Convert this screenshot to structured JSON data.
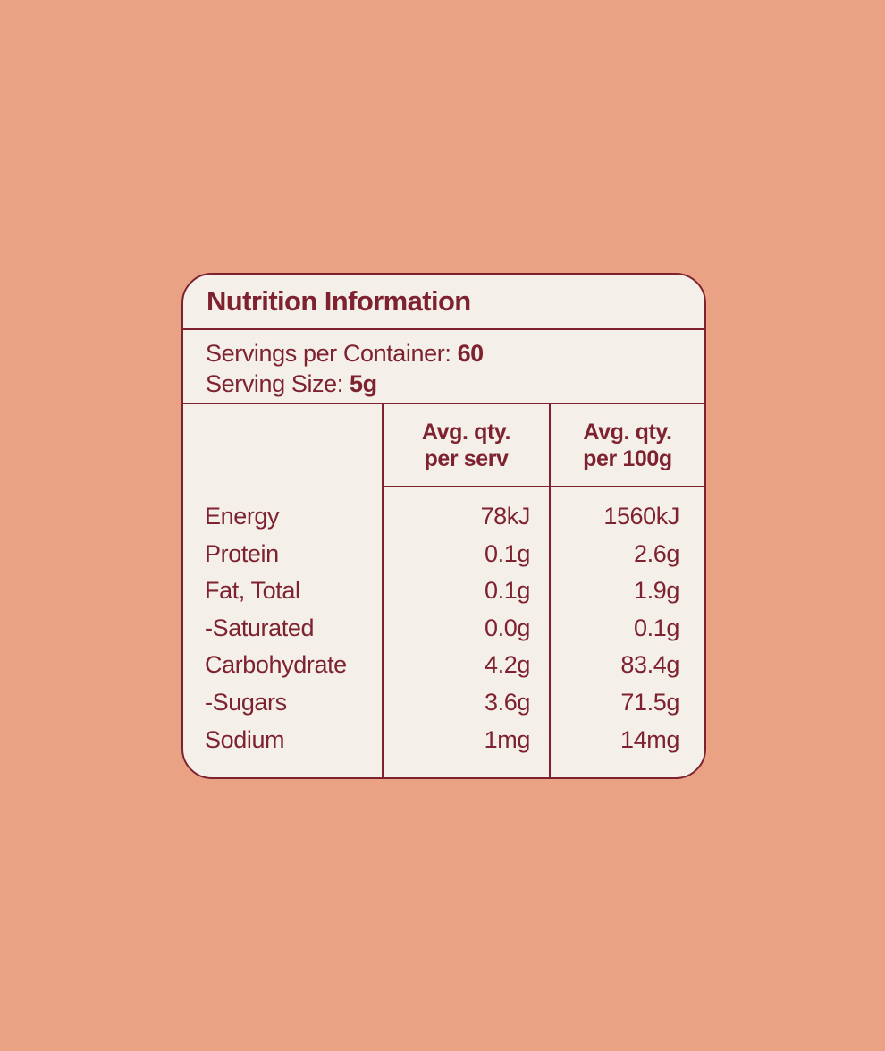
{
  "colors": {
    "page_background": "#E9A284",
    "card_background": "#F4EFE9",
    "accent_maroon": "#7E2230"
  },
  "card": {
    "title": "Nutrition Information",
    "servings_per_container_label": "Servings per Container:",
    "servings_per_container_value": "60",
    "serving_size_label": "Serving Size:",
    "serving_size_value": "5g"
  },
  "table": {
    "per_serv_header_line1": "Avg. qty.",
    "per_serv_header_line2": "per serv",
    "per_100g_header_line1": "Avg. qty.",
    "per_100g_header_line2": "per 100g",
    "rows": [
      {
        "label": "Energy",
        "per_serv": "78kJ",
        "per_100g": "1560kJ"
      },
      {
        "label": "Protein",
        "per_serv": "0.1g",
        "per_100g": "2.6g"
      },
      {
        "label": "Fat, Total",
        "per_serv": "0.1g",
        "per_100g": "1.9g"
      },
      {
        "label": "-Saturated",
        "per_serv": "0.0g",
        "per_100g": "0.1g"
      },
      {
        "label": "Carbohydrate",
        "per_serv": "4.2g",
        "per_100g": "83.4g"
      },
      {
        "label": "-Sugars",
        "per_serv": "3.6g",
        "per_100g": "71.5g"
      },
      {
        "label": "Sodium",
        "per_serv": "1mg",
        "per_100g": "14mg"
      }
    ]
  }
}
